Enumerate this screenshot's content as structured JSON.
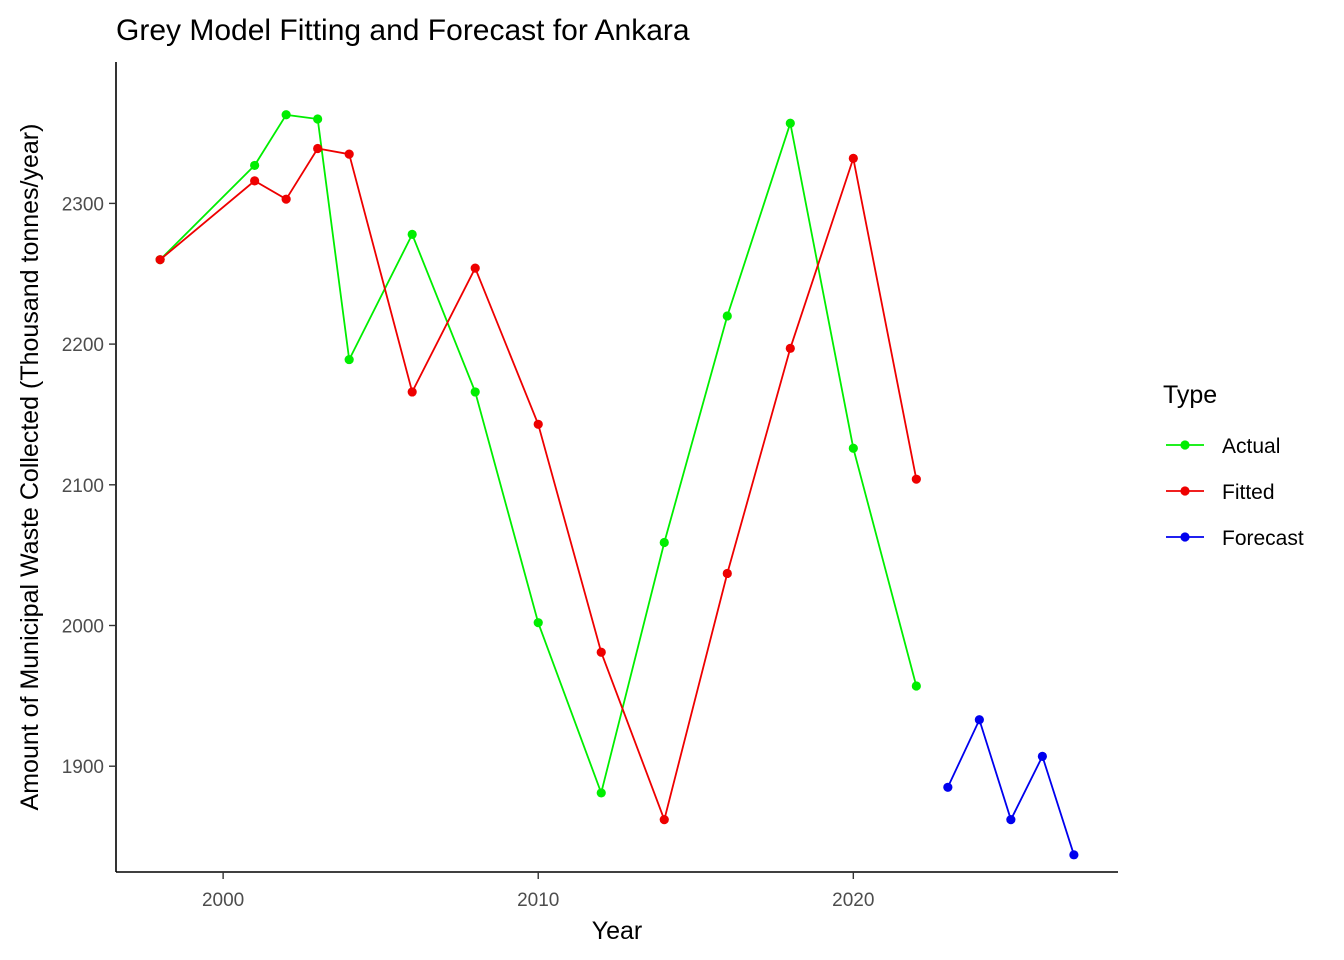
{
  "chart_data": {
    "type": "line",
    "title": "Grey Model Fitting and Forecast for Ankara",
    "xlabel": "Year",
    "ylabel": "Amount of Municipal Waste Collected (Thousand tonnes/year)",
    "xlim": [
      1996.6,
      2028.4
    ],
    "ylim": [
      1824.8,
      2400.5
    ],
    "x_ticks": [
      2000,
      2010,
      2020
    ],
    "y_ticks": [
      1900,
      2000,
      2100,
      2200,
      2300
    ],
    "grid": false,
    "legend": {
      "title": "Type",
      "position": "right"
    },
    "series": [
      {
        "name": "Actual",
        "color": "#00ee00",
        "points": [
          [
            1998,
            2260
          ],
          [
            2001,
            2327
          ],
          [
            2002,
            2363
          ],
          [
            2003,
            2360
          ],
          [
            2004,
            2189
          ],
          [
            2006,
            2278
          ],
          [
            2008,
            2166
          ],
          [
            2010,
            2002
          ],
          [
            2012,
            1881
          ],
          [
            2014,
            2059
          ],
          [
            2016,
            2220
          ],
          [
            2018,
            2357
          ],
          [
            2020,
            2126
          ],
          [
            2022,
            1957
          ]
        ]
      },
      {
        "name": "Fitted",
        "color": "#ee0000",
        "points": [
          [
            1998,
            2260
          ],
          [
            2001,
            2316
          ],
          [
            2002,
            2303
          ],
          [
            2003,
            2339
          ],
          [
            2004,
            2335
          ],
          [
            2006,
            2166
          ],
          [
            2008,
            2254
          ],
          [
            2010,
            2143
          ],
          [
            2012,
            1981
          ],
          [
            2014,
            1862
          ],
          [
            2016,
            2037
          ],
          [
            2018,
            2197
          ],
          [
            2020,
            2332
          ],
          [
            2022,
            2104
          ]
        ]
      },
      {
        "name": "Forecast",
        "color": "#0000ee",
        "points": [
          [
            2023,
            1885
          ],
          [
            2024,
            1933
          ],
          [
            2025,
            1862
          ],
          [
            2026,
            1907
          ],
          [
            2027,
            1837
          ]
        ]
      }
    ]
  }
}
